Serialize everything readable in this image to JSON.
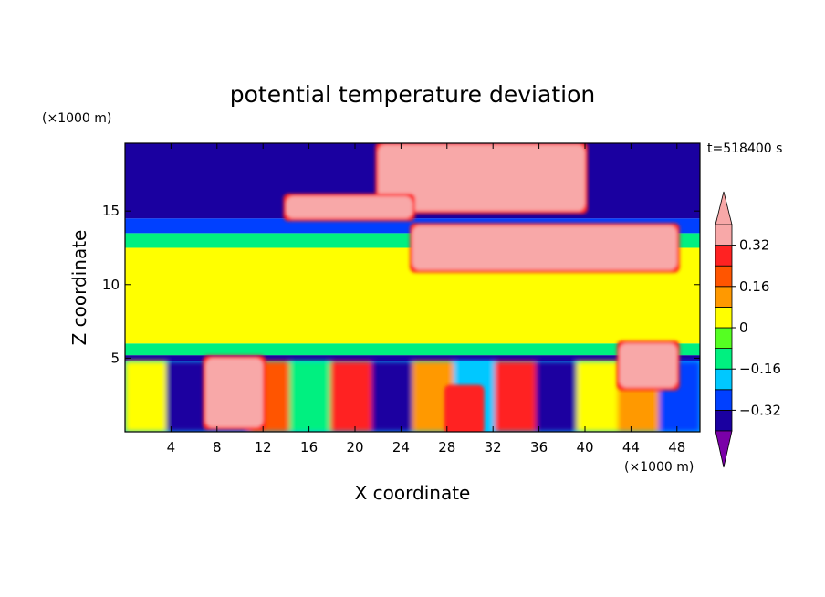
{
  "chart_data": {
    "type": "heatmap",
    "title": "potential temperature deviation",
    "xlabel": "X coordinate",
    "ylabel": "Z coordinate",
    "x_unit": "(×1000 m)",
    "y_unit": "(×1000 m)",
    "time_label": "t=518400 s",
    "xlim": [
      0,
      50
    ],
    "ylim": [
      0,
      19.6
    ],
    "x_ticks": [
      4,
      8,
      12,
      16,
      20,
      24,
      28,
      32,
      36,
      40,
      44,
      48
    ],
    "y_ticks": [
      5,
      10,
      15
    ],
    "colorbar": {
      "levels": [
        -0.4,
        -0.32,
        -0.24,
        -0.16,
        -0.08,
        0,
        0.08,
        0.16,
        0.24,
        0.32,
        0.4
      ],
      "tick_values": [
        -0.32,
        -0.16,
        0,
        0.16,
        0.32
      ],
      "tick_labels": [
        "−0.32",
        "−0.16",
        "0",
        "0.16",
        "0.32"
      ],
      "colors": [
        "#7a00a8",
        "#1a00a0",
        "#0040ff",
        "#00c8ff",
        "#00f080",
        "#55ff22",
        "#ffff00",
        "#ff9900",
        "#ff5500",
        "#ff2222",
        "#f8a8a8"
      ],
      "extend": "both"
    },
    "layers": [
      {
        "z": [
          0,
          4.8
        ],
        "value": "mixed",
        "note": "boundary layer with mixed warm/cold plumes"
      },
      {
        "z": [
          4.8,
          5.2
        ],
        "value": -0.4
      },
      {
        "z": [
          5.2,
          6.0
        ],
        "value": -0.1
      },
      {
        "z": [
          6.0,
          12.5
        ],
        "value": 0.0
      },
      {
        "z": [
          12.5,
          13.5
        ],
        "value": -0.16
      },
      {
        "z": [
          13.5,
          14.5
        ],
        "value": -0.3
      },
      {
        "z": [
          14.5,
          19.6
        ],
        "value": -0.4
      }
    ],
    "warm_patches": [
      {
        "x": [
          7,
          12
        ],
        "z": [
          0.3,
          5.0
        ],
        "value": 0.45
      },
      {
        "x": [
          22,
          40
        ],
        "z": [
          15.0,
          19.5
        ],
        "value": 0.45
      },
      {
        "x": [
          25,
          48
        ],
        "z": [
          11.0,
          14.0
        ],
        "value": 0.45
      },
      {
        "x": [
          43,
          48
        ],
        "z": [
          3.0,
          6.0
        ],
        "value": 0.45
      },
      {
        "x": [
          14,
          25
        ],
        "z": [
          14.5,
          16.0
        ],
        "value": 0.45
      },
      {
        "x": [
          28,
          31
        ],
        "z": [
          0.0,
          3.0
        ],
        "value": 0.3
      }
    ],
    "grid": false
  }
}
